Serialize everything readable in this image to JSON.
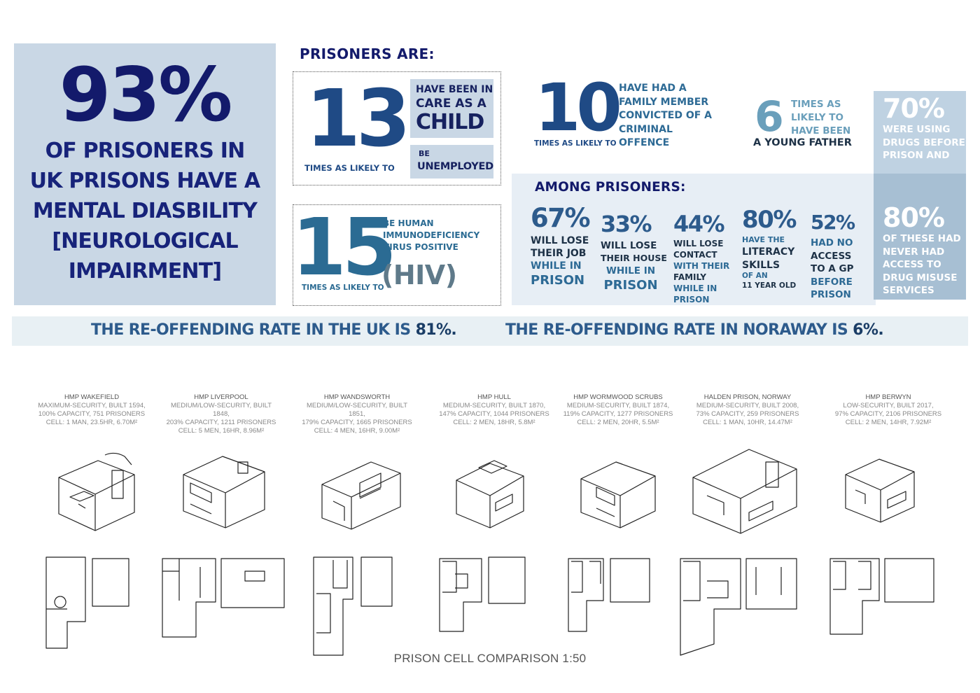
{
  "headline": {
    "pct": "93%",
    "desc_lines": [
      "OF PRISONERS IN",
      "UK PRISONS HAVE A",
      "MENTAL DIASBILITY",
      "[NEUROLOGICAL",
      "IMPAIRMENT]"
    ]
  },
  "prisoners_are": "PRISONERS ARE:",
  "stat13": {
    "number": "13",
    "times_label": "TIMES AS LIKELY TO",
    "care_lines": [
      "HAVE BEEN IN",
      "CARE AS A",
      "CHILD"
    ],
    "be": "BE",
    "unemployed": "UNEMPLOYED"
  },
  "stat15": {
    "number": "15",
    "times_label": "TIMES AS LIKELY TO",
    "desc_lines": [
      "BE HUMAN",
      "IMMUNODEFICIENCY",
      "VIRUS POSITIVE"
    ],
    "hiv": "(HIV)"
  },
  "stat10": {
    "number": "10",
    "times_label": "TIMES AS LIKELY TO",
    "desc_lines": [
      "HAVE HAD A",
      "FAMILY MEMBER",
      "CONVICTED OF A",
      "CRIMINAL",
      "OFFENCE"
    ]
  },
  "stat6": {
    "number": "6",
    "desc_lines": [
      "TIMES AS",
      "LIKELY TO",
      "HAVE BEEN"
    ],
    "young_father": "A YOUNG FATHER"
  },
  "among": {
    "title": "AMONG PRISONERS:",
    "stats": [
      {
        "pct": "67%",
        "lines": [
          "WILL LOSE",
          "THEIR JOB",
          "WHILE IN",
          "PRISON"
        ]
      },
      {
        "pct": "33%",
        "lines": [
          "WILL LOSE",
          "THEIR HOUSE",
          "WHILE IN",
          "PRISON"
        ]
      },
      {
        "pct": "44%",
        "lines": [
          "WILL LOSE",
          "CONTACT",
          "WITH THEIR",
          "FAMILY",
          "WHILE IN",
          "PRISON"
        ]
      },
      {
        "pct": "80%",
        "lines": [
          "HAVE THE",
          "LITERACY",
          "SKILLS",
          "OF AN",
          "11 YEAR OLD"
        ]
      },
      {
        "pct": "52%",
        "lines": [
          "HAD NO",
          "ACCESS",
          "TO A GP",
          "BEFORE",
          "PRISON"
        ]
      }
    ]
  },
  "side": {
    "top_pct": "70%",
    "top_lines": [
      "WERE USING",
      "DRUGS BEFORE",
      "PRISON AND"
    ],
    "bottom_pct": "80%",
    "bottom_lines": [
      "OF THESE HAD",
      "NEVER HAD",
      "ACCESS TO",
      "DRUG MISUSE",
      "SERVICES"
    ]
  },
  "reoffending": {
    "uk_label": "THE RE-OFFENDING RATE IN THE UK IS",
    "uk_value": "81%.",
    "norway_label": "THE RE-OFFENDING RATE IN NORAWAY IS",
    "norway_value": "6%."
  },
  "prisons": [
    {
      "name": "HMP WAKEFIELD",
      "line1": "MAXIMUM-SECURITY, BUILT 1594,",
      "line2": "100% CAPACITY, 751 PRISONERS",
      "line3": "CELL:  1 MAN, 23.5HR, 6.70M²"
    },
    {
      "name": "HMP LIVERPOOL",
      "line1": "MEDIUM/LOW-SECURITY, BUILT 1848,",
      "line2": "203% CAPACITY, 1211 PRISONERS",
      "line3": "CELL:  5 MEN, 16HR, 8.96M²"
    },
    {
      "name": "HMP WANDSWORTH",
      "line1": "MEDIUM/LOW-SECURITY, BUILT 1851,",
      "line2": "179% CAPACITY, 1665 PRISONERS",
      "line3": "CELL:  4 MEN, 16HR, 9.00M²"
    },
    {
      "name": "HMP HULL",
      "line1": "MEDIUM-SECURITY, BUILT 1870,",
      "line2": "147% CAPACITY, 1044 PRISONERS",
      "line3": "CELL:  2 MEN, 18HR, 5.8M²"
    },
    {
      "name": "HMP WORMWOOD SCRUBS",
      "line1": "MEDIUM-SECURITY, BUILT 1874,",
      "line2": "119% CAPACITY, 1277 PRISONERS",
      "line3": "CELL:  2 MEN, 20HR, 5.5M²"
    },
    {
      "name": "HALDEN PRISON, NORWAY",
      "line1": "MEDIUM-SECURITY, BUILT 2008,",
      "line2": "73% CAPACITY, 259 PRISONERS",
      "line3": "CELL:  1 MAN, 10HR, 14.47M²"
    },
    {
      "name": "HMP BERWYN",
      "line1": "LOW-SECURITY, BUILT 2017,",
      "line2": "97% CAPACITY, 2106 PRISONERS",
      "line3": "CELL:  2 MEN, 14HR, 7.92M²"
    }
  ],
  "footer": "PRISON CELL COMPARISON 1:50"
}
